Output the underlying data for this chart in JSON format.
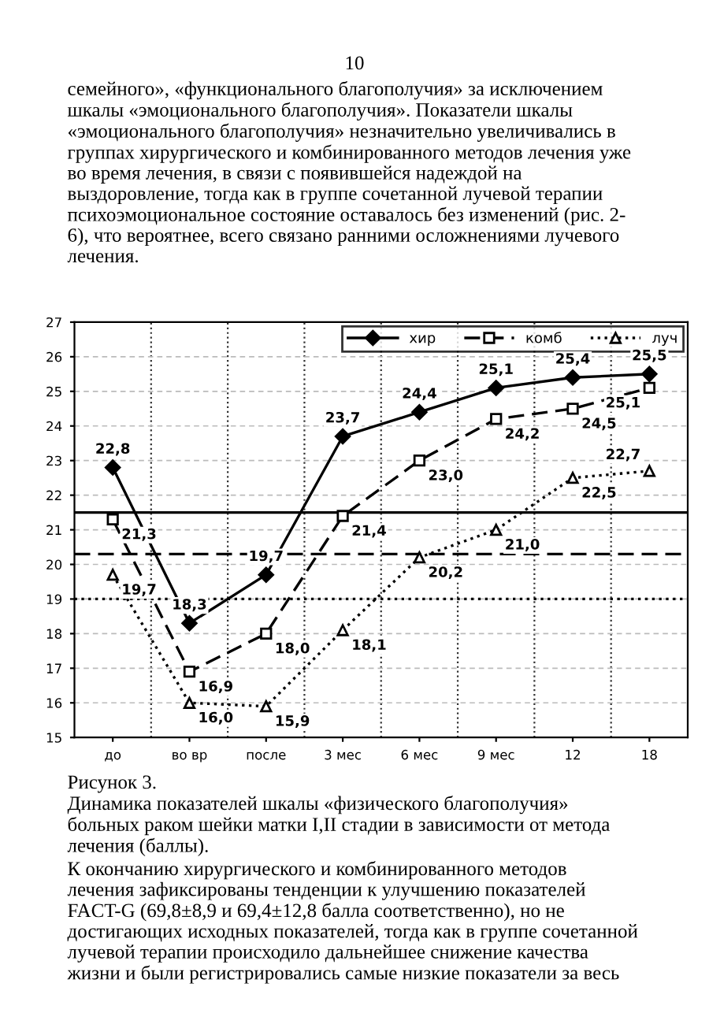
{
  "chart_data": {
    "type": "line",
    "categories": [
      "до",
      "во вр",
      "после",
      "3 мес",
      "6 мес",
      "9 мес",
      "12",
      "18"
    ],
    "series": [
      {
        "name": "хир",
        "color": "#000000",
        "marker": "diamond",
        "line_style": "solid",
        "values": [
          22.8,
          18.3,
          19.7,
          23.7,
          24.4,
          25.1,
          25.4,
          25.5
        ],
        "value_labels": [
          "22,8",
          "18,3",
          "19,7",
          "23,7",
          "24,4",
          "25,1",
          "25,4",
          "25,5"
        ]
      },
      {
        "name": "комб",
        "color": "#000000",
        "marker": "square",
        "line_style": "dashed",
        "values": [
          21.3,
          16.9,
          18.0,
          21.4,
          23.0,
          24.2,
          24.5,
          25.1
        ],
        "value_labels": [
          "21,3",
          "16,9",
          "18,0",
          "21,4",
          "23,0",
          "24,2",
          "24,5",
          "25,1"
        ]
      },
      {
        "name": "луч",
        "color": "#000000",
        "marker": "triangle",
        "line_style": "dotted",
        "values": [
          19.7,
          16.0,
          15.9,
          18.1,
          20.2,
          21.0,
          22.5,
          22.7
        ],
        "value_labels": [
          "19,7",
          "16,0",
          "15,9",
          "18,1",
          "20,2",
          "21,0",
          "22,5",
          "22,7"
        ]
      }
    ],
    "ylim": [
      15,
      27
    ],
    "yticks": [
      15,
      16,
      17,
      18,
      19,
      20,
      21,
      22,
      23,
      24,
      25,
      26,
      27
    ],
    "grid": true,
    "legend": "top right",
    "ref_lines": [
      {
        "axis": "y",
        "value": 21.5,
        "color": "#000000",
        "line_style": "solid"
      },
      {
        "axis": "y",
        "value": 20.3,
        "color": "#000000",
        "line_style": "dashed"
      },
      {
        "axis": "y",
        "value": 19.0,
        "color": "#000000",
        "line_style": "dotted"
      }
    ],
    "annotations": [
      "10",
      "семейного», «функционального благополучия» за исключением\nшкалы «эмоционального благополучия». Показатели шкалы\n«эмоционального благополучия» незначительно увеличивались в\nгруппах хирургического и комбинированного методов лечения уже\nво время лечения, в связи с появившейся надеждой на\nвыздоровление, тогда как в группе сочетанной лучевой терапии\nпсихоэмоциональное состояние оставалось без изменений (рис. 2-\n6), что вероятнее, всего связано ранними осложнениями лучевого\nлечения.",
      "Рисунок 3.\nДинамика показателей шкалы «физического благополучия»\nбольных раком шейки матки I,II стадии в зависимости от метода\nлечения (баллы).",
      "К окончанию хирургического и комбинированного методов\nлечения зафиксированы тенденции к улучшению показателей\nFACT-G (69,8±8,9 и 69,4±12,8 балла соответственно), но не\nдостигающих исходных показателей, тогда как в группе сочетанной\nлучевой терапии происходило дальнейшее снижение качества\nжизни и были регистрировались самые низкие показатели за весь"
    ]
  }
}
